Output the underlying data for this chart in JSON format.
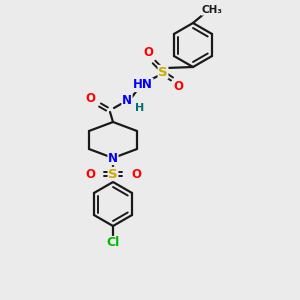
{
  "bg_color": "#ebebeb",
  "bond_color": "#1a1a1a",
  "atom_colors": {
    "O": "#ff0000",
    "N": "#0000ff",
    "S": "#ccaa00",
    "Cl": "#00bb00",
    "H": "#007070",
    "C": "#1a1a1a"
  },
  "figsize": [
    3.0,
    3.0
  ],
  "dpi": 100
}
